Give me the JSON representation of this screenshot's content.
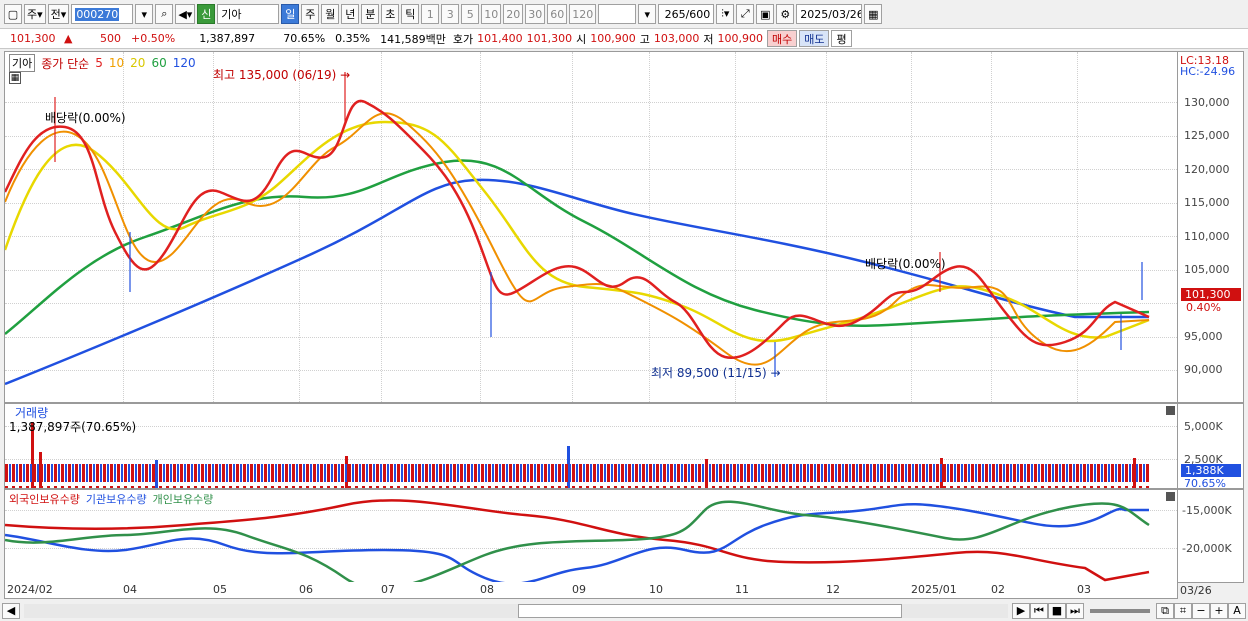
{
  "toolbar": {
    "market_label": "주",
    "market2_label": "전",
    "code": "000270",
    "badge_label": "신",
    "stock_name": "기아",
    "periods": [
      "일",
      "주",
      "월",
      "년",
      "분",
      "초",
      "틱"
    ],
    "active_period": "일",
    "intervals": [
      "1",
      "3",
      "5",
      "10",
      "20",
      "30",
      "60",
      "120"
    ],
    "count": "265",
    "count_total": "/600",
    "date": "2025/03/26"
  },
  "quote": {
    "price": "101,300",
    "change": "500",
    "change_pct": "+0.50%",
    "volume": "1,387,897",
    "volume_ratio": "70.65%",
    "turnover": "0.35%",
    "amount": "141,589백만",
    "ask_label": "호가",
    "ask": "101,400",
    "bid": "101,300",
    "open_label": "시",
    "open": "100,900",
    "high_label": "고",
    "high": "103,000",
    "low_label": "저",
    "low": "100,900",
    "buy_label": "매수",
    "sell_label": "매도",
    "eval_label": "평"
  },
  "price_panel": {
    "stock_tag": "기아",
    "ma_title": "종가 단순",
    "ma_periods": [
      "5",
      "10",
      "20",
      "60",
      "120"
    ],
    "ma_colors": [
      "#e02020",
      "#f0a000",
      "#e8d800",
      "#20a040",
      "#2050e0"
    ],
    "high_anno": "최고 135,000 (06/19)",
    "low_anno": "최저 89,500 (11/15)",
    "div_anno_1": "배당락(0.00%)",
    "div_anno_2": "배당락(0.00%)",
    "lc_label": "LC:13.18",
    "hc_label": "HC:-24.96",
    "y_labels": [
      "130,000",
      "125,000",
      "120,000",
      "115,000",
      "110,000",
      "105,000",
      "100,000",
      "95,000",
      "90,000"
    ],
    "current_price_tag": "101,300",
    "current_pct_tag": "0.40%"
  },
  "volume_panel": {
    "title": "거래량",
    "value": "1,387,897주(70.65%)",
    "y_labels": [
      "5,000K",
      "2,500K"
    ],
    "current_tag": "1,388K",
    "current_pct": "70.65%"
  },
  "holding_panel": {
    "legend": [
      "외국인보유수량",
      "기관보유수량",
      "개인보유수량"
    ],
    "colors": [
      "#d01010",
      "#2050e0",
      "#30904a"
    ],
    "y_labels": [
      "-15,000K",
      "-20,000K"
    ]
  },
  "date_axis": [
    "2024/02",
    "04",
    "05",
    "06",
    "07",
    "08",
    "09",
    "10",
    "11",
    "12",
    "2025/01",
    "02",
    "03",
    "03/26"
  ]
}
